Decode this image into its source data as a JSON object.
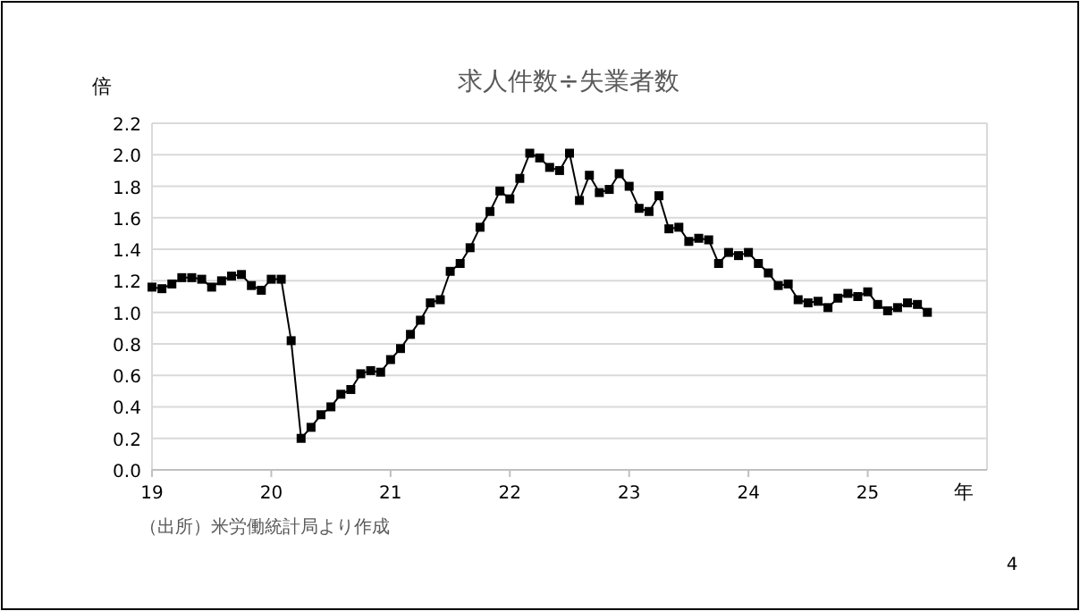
{
  "chart_data": {
    "type": "line",
    "title": "求人件数÷失業者数",
    "ylabel": "倍",
    "xlabel": "年",
    "annotations": [
      "（出所）米労働統計局より作成",
      "4"
    ],
    "x": [
      "2019-01",
      "2019-02",
      "2019-03",
      "2019-04",
      "2019-05",
      "2019-06",
      "2019-07",
      "2019-08",
      "2019-09",
      "2019-10",
      "2019-11",
      "2019-12",
      "2020-01",
      "2020-02",
      "2020-03",
      "2020-04",
      "2020-05",
      "2020-06",
      "2020-07",
      "2020-08",
      "2020-09",
      "2020-10",
      "2020-11",
      "2020-12",
      "2021-01",
      "2021-02",
      "2021-03",
      "2021-04",
      "2021-05",
      "2021-06",
      "2021-07",
      "2021-08",
      "2021-09",
      "2021-10",
      "2021-11",
      "2021-12",
      "2022-01",
      "2022-02",
      "2022-03",
      "2022-04",
      "2022-05",
      "2022-06",
      "2022-07",
      "2022-08",
      "2022-09",
      "2022-10",
      "2022-11",
      "2022-12",
      "2023-01",
      "2023-02",
      "2023-03",
      "2023-04",
      "2023-05",
      "2023-06",
      "2023-07",
      "2023-08",
      "2023-09",
      "2023-10",
      "2023-11",
      "2023-12",
      "2024-01",
      "2024-02",
      "2024-03",
      "2024-04",
      "2024-05",
      "2024-06",
      "2024-07",
      "2024-08",
      "2024-09",
      "2024-10",
      "2024-11",
      "2024-12",
      "2025-01",
      "2025-02",
      "2025-03",
      "2025-04",
      "2025-05",
      "2025-06",
      "2025-07"
    ],
    "series": [
      {
        "color": "#000000",
        "values": [
          1.16,
          1.15,
          1.18,
          1.22,
          1.22,
          1.21,
          1.16,
          1.2,
          1.23,
          1.24,
          1.17,
          1.14,
          1.21,
          1.21,
          0.82,
          0.2,
          0.27,
          0.35,
          0.4,
          0.48,
          0.51,
          0.61,
          0.63,
          0.62,
          0.7,
          0.77,
          0.86,
          0.95,
          1.06,
          1.08,
          1.26,
          1.31,
          1.41,
          1.54,
          1.64,
          1.77,
          1.72,
          1.85,
          2.01,
          1.98,
          1.92,
          1.9,
          2.01,
          1.71,
          1.87,
          1.76,
          1.78,
          1.88,
          1.8,
          1.66,
          1.64,
          1.74,
          1.53,
          1.54,
          1.45,
          1.47,
          1.46,
          1.31,
          1.38,
          1.36,
          1.38,
          1.31,
          1.25,
          1.17,
          1.18,
          1.08,
          1.06,
          1.07,
          1.03,
          1.09,
          1.12,
          1.1,
          1.13,
          1.05,
          1.01,
          1.03,
          1.06,
          1.05,
          1.0
        ]
      }
    ],
    "xlim": [
      "2019-01",
      "2026-01"
    ],
    "xticks": [
      {
        "value": "2019-01",
        "label": "19"
      },
      {
        "value": "2020-01",
        "label": "20"
      },
      {
        "value": "2021-01",
        "label": "21"
      },
      {
        "value": "2022-01",
        "label": "22"
      },
      {
        "value": "2023-01",
        "label": "23"
      },
      {
        "value": "2024-01",
        "label": "24"
      },
      {
        "value": "2025-01",
        "label": "25"
      }
    ],
    "ylim": [
      0,
      2.2
    ],
    "yticks": [
      {
        "value": 0,
        "label": "0.0"
      },
      {
        "value": 0.2,
        "label": "0.2"
      },
      {
        "value": 0.4,
        "label": "0.4"
      },
      {
        "value": 0.6,
        "label": "0.6"
      },
      {
        "value": 0.8,
        "label": "0.8"
      },
      {
        "value": 1,
        "label": "1.0"
      },
      {
        "value": 1.2,
        "label": "1.2"
      },
      {
        "value": 1.4,
        "label": "1.4"
      },
      {
        "value": 1.6,
        "label": "1.6"
      },
      {
        "value": 1.8,
        "label": "1.8"
      },
      {
        "value": 2,
        "label": "2.0"
      },
      {
        "value": 2.2,
        "label": "2.2"
      }
    ],
    "grid": "y",
    "marker": "square",
    "line_style": "solid"
  }
}
